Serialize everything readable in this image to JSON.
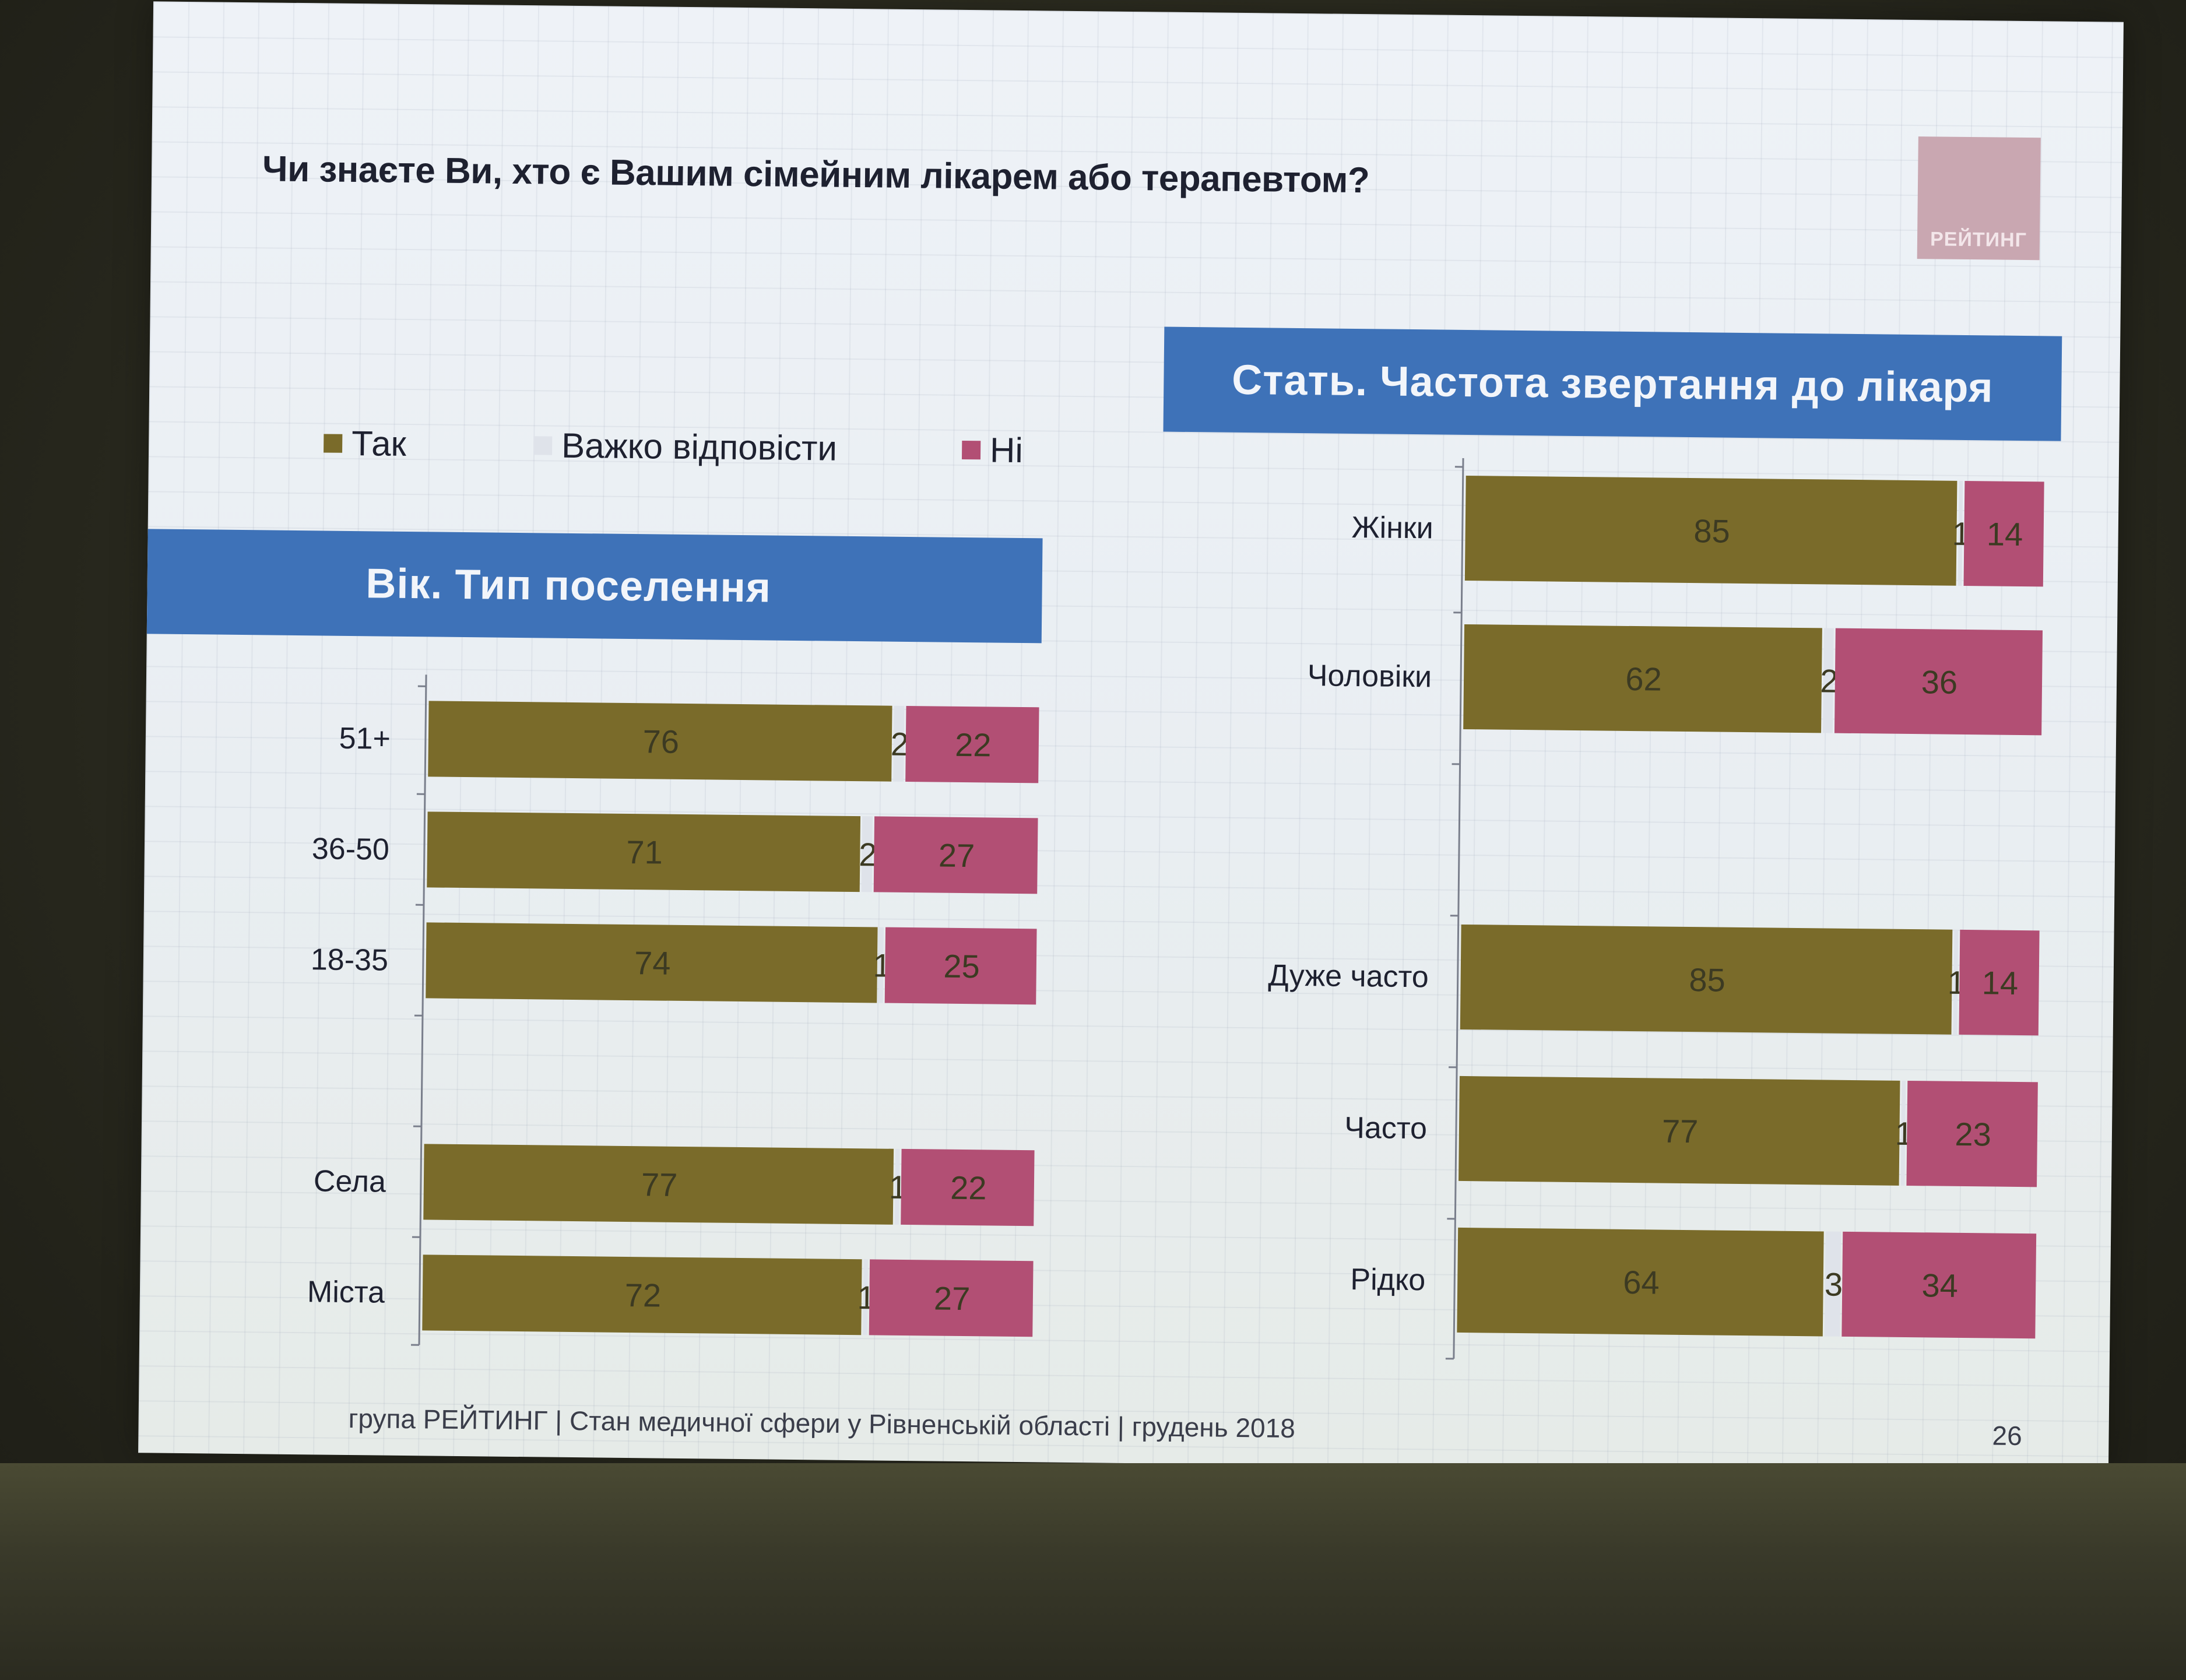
{
  "slide": {
    "question": "Чи знаєте Ви, хто є Вашим сімейним лікарем або терапевтом?",
    "logo_text": "РЕЙТИНГ",
    "footer": "група РЕЙТИНГ  |  Стан медичної сфери у Рівненській області  |  грудень 2018",
    "page_number": "26"
  },
  "legend": [
    {
      "label": "Так",
      "color": "#7a6b2a"
    },
    {
      "label": "Важко відповісти",
      "color": "#dfe3ea"
    },
    {
      "label": "Ні",
      "color": "#b24f74"
    }
  ],
  "colors": {
    "yes": "#7a6b2a",
    "hard": "#dfe3ea",
    "no": "#b24f74",
    "banner": "#3e72b8"
  },
  "chart_data": [
    {
      "type": "bar",
      "orientation": "horizontal",
      "stacked": true,
      "title": "Вік. Тип поселення",
      "groups": [
        [
          "51+",
          "36-50",
          "18-35"
        ],
        [
          "Села",
          "Міста"
        ]
      ],
      "categories": [
        "51+",
        "36-50",
        "18-35",
        "Села",
        "Міста"
      ],
      "series": [
        {
          "name": "Так",
          "values": [
            76,
            71,
            74,
            77,
            72
          ]
        },
        {
          "name": "Важко відповісти",
          "values": [
            2,
            2,
            1,
            1,
            1
          ]
        },
        {
          "name": "Ні",
          "values": [
            22,
            27,
            25,
            22,
            27
          ]
        }
      ],
      "xlim": [
        0,
        100
      ]
    },
    {
      "type": "bar",
      "orientation": "horizontal",
      "stacked": true,
      "title": "Стать. Частота звертання до лікаря",
      "groups": [
        [
          "Жінки",
          "Чоловіки"
        ],
        [
          "Дуже часто",
          "Часто",
          "Рідко"
        ]
      ],
      "categories": [
        "Жінки",
        "Чоловіки",
        "Дуже часто",
        "Часто",
        "Рідко"
      ],
      "series": [
        {
          "name": "Так",
          "values": [
            85,
            62,
            85,
            77,
            64
          ]
        },
        {
          "name": "Важко відповісти",
          "values": [
            1,
            2,
            1,
            1,
            3
          ]
        },
        {
          "name": "Ні",
          "values": [
            14,
            36,
            14,
            23,
            34
          ]
        }
      ],
      "xlim": [
        0,
        100
      ]
    }
  ]
}
